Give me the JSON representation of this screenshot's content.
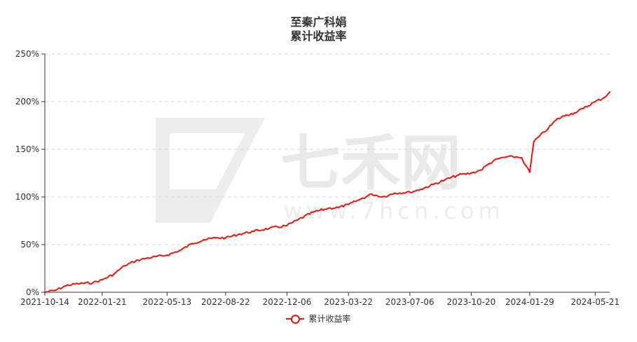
{
  "chart_data": {
    "type": "line",
    "title": "至秦广科娟",
    "subtitle": "累计收益率",
    "x_ticks": [
      "2021-10-14",
      "2022-01-21",
      "2022-05-13",
      "2022-08-22",
      "2022-12-06",
      "2023-03-22",
      "2023-07-06",
      "2023-10-20",
      "2024-01-29",
      "2024-05-21"
    ],
    "y_ticks": [
      "0%",
      "50%",
      "100%",
      "150%",
      "200%",
      "250%"
    ],
    "ylim": [
      0,
      250
    ],
    "y_unit": "%",
    "grid": "horizontal dashed",
    "legend_position": "bottom-center",
    "series": [
      {
        "name": "累计收益率",
        "color": "#e8190c",
        "x": [
          "2021-10-14",
          "2021-11-01",
          "2021-11-20",
          "2021-12-10",
          "2022-01-05",
          "2022-01-21",
          "2022-02-10",
          "2022-03-01",
          "2022-03-20",
          "2022-04-10",
          "2022-05-13",
          "2022-06-05",
          "2022-06-25",
          "2022-07-15",
          "2022-08-05",
          "2022-08-22",
          "2022-09-15",
          "2022-10-10",
          "2022-11-05",
          "2022-12-06",
          "2022-12-25",
          "2023-01-20",
          "2023-02-15",
          "2023-03-05",
          "2023-03-22",
          "2023-04-10",
          "2023-05-01",
          "2023-05-20",
          "2023-06-10",
          "2023-07-06",
          "2023-07-25",
          "2023-08-15",
          "2023-09-05",
          "2023-09-28",
          "2023-10-20",
          "2023-11-05",
          "2023-11-20",
          "2023-12-05",
          "2023-12-20",
          "2024-01-05",
          "2024-01-15",
          "2024-01-22",
          "2024-01-29",
          "2024-02-05",
          "2024-02-15",
          "2024-03-01",
          "2024-03-15",
          "2024-04-01",
          "2024-04-15",
          "2024-05-01",
          "2024-05-21",
          "2024-06-05",
          "2024-06-15"
        ],
        "values": [
          0,
          2,
          7,
          9,
          10,
          13,
          19,
          28,
          33,
          36,
          39,
          44,
          51,
          55,
          57,
          57,
          61,
          64,
          67,
          70,
          76,
          84,
          88,
          89,
          92,
          97,
          103,
          100,
          104,
          105,
          108,
          113,
          118,
          123,
          125,
          128,
          135,
          140,
          142,
          142,
          141,
          133,
          126,
          158,
          164,
          172,
          181,
          186,
          188,
          193,
          200,
          204,
          210
        ]
      }
    ]
  },
  "watermark": {
    "text": "七禾网",
    "url": "www.7hcn.com"
  }
}
